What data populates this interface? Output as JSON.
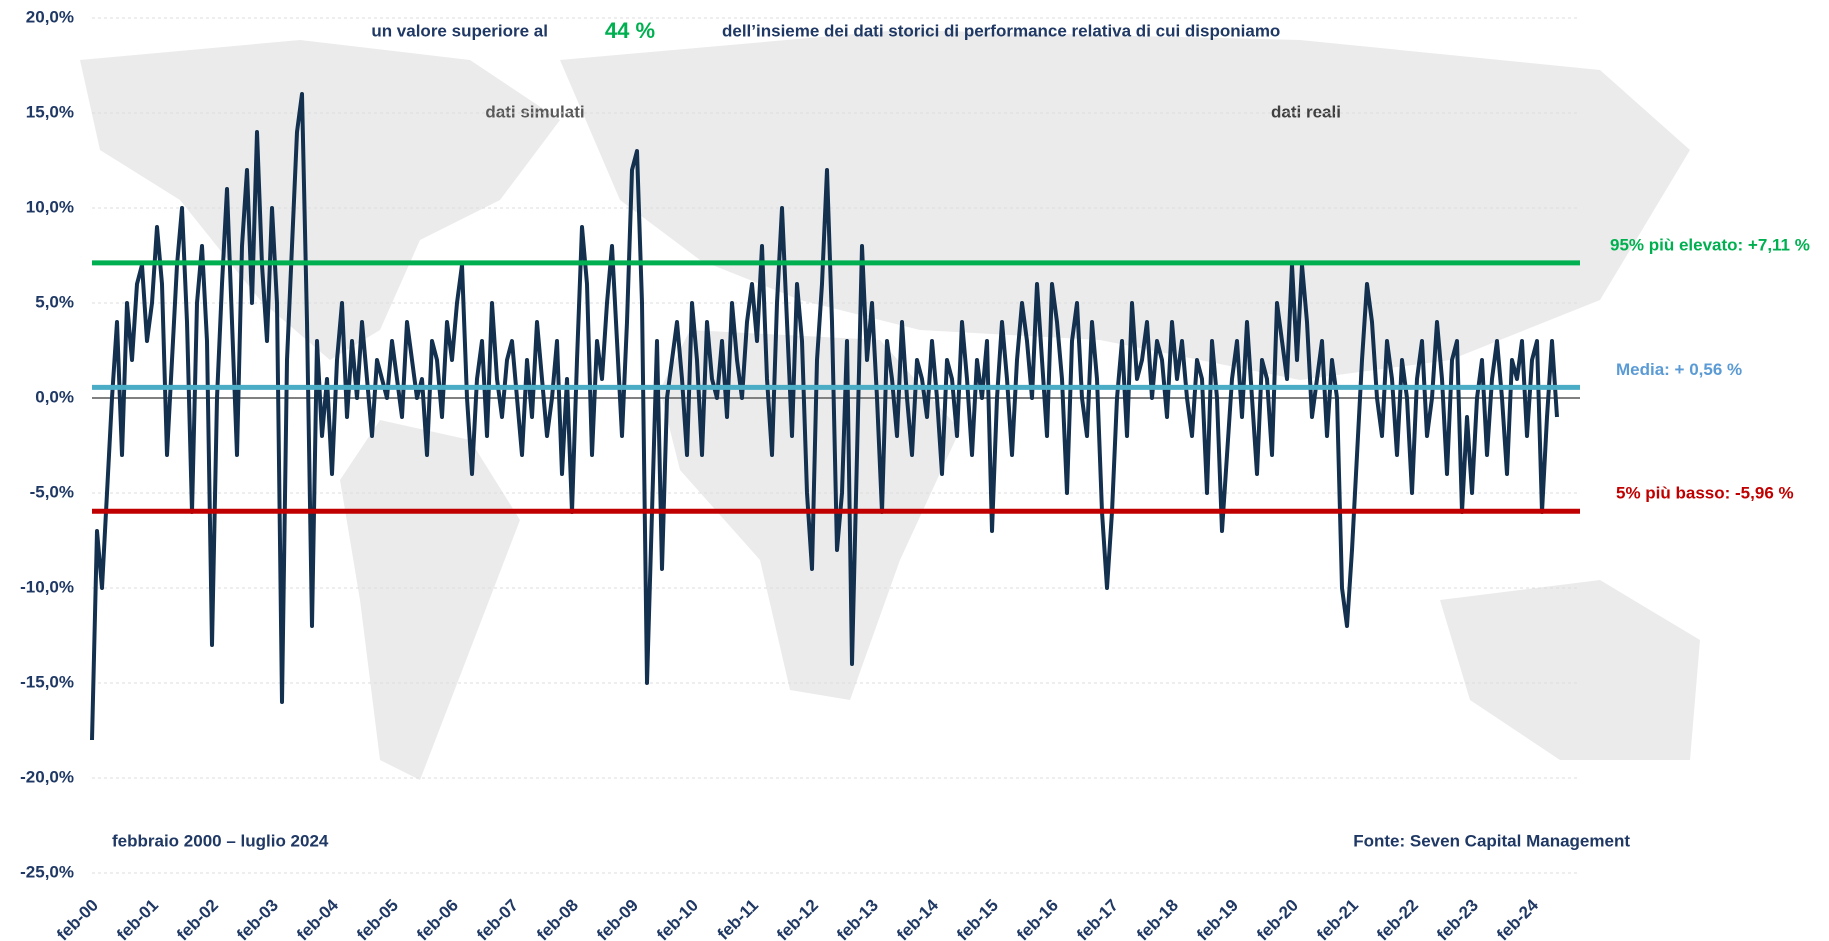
{
  "chart_data": {
    "type": "line",
    "title_prefix": "un valore superiore al",
    "highlight": "44 %",
    "title_suffix": "dell’insieme dei dati storici di performance relativa di cui disponiamo",
    "annotations": [
      "dati simulati",
      "dati reali",
      "febbraio 2000 – luglio 2024",
      "Fonte: Seven Capital Management"
    ],
    "categories": [
      "feb-00",
      null,
      null,
      null,
      null,
      null,
      null,
      null,
      null,
      null,
      null,
      null,
      "feb-01",
      null,
      null,
      null,
      null,
      null,
      null,
      null,
      null,
      null,
      null,
      null,
      "feb-02",
      null,
      null,
      null,
      null,
      null,
      null,
      null,
      null,
      null,
      null,
      null,
      "feb-03",
      null,
      null,
      null,
      null,
      null,
      null,
      null,
      null,
      null,
      null,
      null,
      "feb-04",
      null,
      null,
      null,
      null,
      null,
      null,
      null,
      null,
      null,
      null,
      null,
      "feb-05",
      null,
      null,
      null,
      null,
      null,
      null,
      null,
      null,
      null,
      null,
      null,
      "feb-06",
      null,
      null,
      null,
      null,
      null,
      null,
      null,
      null,
      null,
      null,
      null,
      "feb-07",
      null,
      null,
      null,
      null,
      null,
      null,
      null,
      null,
      null,
      null,
      null,
      "feb-08",
      null,
      null,
      null,
      null,
      null,
      null,
      null,
      null,
      null,
      null,
      null,
      "feb-09",
      null,
      null,
      null,
      null,
      null,
      null,
      null,
      null,
      null,
      null,
      null,
      "feb-10",
      null,
      null,
      null,
      null,
      null,
      null,
      null,
      null,
      null,
      null,
      null,
      "feb-11",
      null,
      null,
      null,
      null,
      null,
      null,
      null,
      null,
      null,
      null,
      null,
      "feb-12",
      null,
      null,
      null,
      null,
      null,
      null,
      null,
      null,
      null,
      null,
      null,
      "feb-13",
      null,
      null,
      null,
      null,
      null,
      null,
      null,
      null,
      null,
      null,
      null,
      "feb-14",
      null,
      null,
      null,
      null,
      null,
      null,
      null,
      null,
      null,
      null,
      null,
      "feb-15",
      null,
      null,
      null,
      null,
      null,
      null,
      null,
      null,
      null,
      null,
      null,
      "feb-16",
      null,
      null,
      null,
      null,
      null,
      null,
      null,
      null,
      null,
      null,
      null,
      "feb-17",
      null,
      null,
      null,
      null,
      null,
      null,
      null,
      null,
      null,
      null,
      null,
      "feb-18",
      null,
      null,
      null,
      null,
      null,
      null,
      null,
      null,
      null,
      null,
      null,
      "feb-19",
      null,
      null,
      null,
      null,
      null,
      null,
      null,
      null,
      null,
      null,
      null,
      "feb-20",
      null,
      null,
      null,
      null,
      null,
      null,
      null,
      null,
      null,
      null,
      null,
      "feb-21",
      null,
      null,
      null,
      null,
      null,
      null,
      null,
      null,
      null,
      null,
      null,
      "feb-22",
      null,
      null,
      null,
      null,
      null,
      null,
      null,
      null,
      null,
      null,
      null,
      "feb-23",
      null,
      null,
      null,
      null,
      null,
      null,
      null,
      null,
      null,
      null,
      null,
      "feb-24",
      null,
      null,
      null,
      null,
      null
    ],
    "values": [
      -18,
      -7,
      -10,
      -5,
      0,
      4,
      -3,
      5,
      2,
      6,
      7,
      3,
      5,
      9,
      6,
      -3,
      2,
      7,
      10,
      4,
      -6,
      5,
      8,
      3,
      -13,
      0,
      6,
      11,
      4,
      -3,
      8,
      12,
      5,
      14,
      7,
      3,
      10,
      5,
      -16,
      2,
      8,
      14,
      16,
      4,
      -12,
      3,
      -2,
      1,
      -4,
      2,
      5,
      -1,
      3,
      0,
      4,
      1,
      -2,
      2,
      1,
      0,
      3,
      1,
      -1,
      4,
      2,
      0,
      1,
      -3,
      3,
      2,
      -1,
      4,
      2,
      5,
      7,
      0,
      -4,
      1,
      3,
      -2,
      5,
      1,
      -1,
      2,
      3,
      0,
      -3,
      2,
      -1,
      4,
      1,
      -2,
      0,
      3,
      -4,
      1,
      -6,
      2,
      9,
      6,
      -3,
      3,
      1,
      5,
      8,
      3,
      -2,
      4,
      12,
      13,
      5,
      -15,
      -6,
      3,
      -9,
      0,
      2,
      4,
      1,
      -3,
      5,
      2,
      -3,
      4,
      1,
      0,
      3,
      -1,
      5,
      2,
      0,
      4,
      6,
      3,
      8,
      1,
      -3,
      5,
      10,
      4,
      -2,
      6,
      3,
      -5,
      -9,
      2,
      6,
      12,
      4,
      -8,
      -5,
      3,
      -14,
      -3,
      8,
      2,
      5,
      0,
      -6,
      3,
      1,
      -2,
      4,
      0,
      -3,
      2,
      1,
      -1,
      3,
      0,
      -4,
      2,
      1,
      -2,
      4,
      1,
      -3,
      2,
      0,
      3,
      -7,
      0,
      4,
      1,
      -3,
      2,
      5,
      3,
      0,
      6,
      2,
      -2,
      6,
      4,
      1,
      -5,
      3,
      5,
      0,
      -2,
      4,
      1,
      -6,
      -10,
      -6,
      0,
      3,
      -2,
      5,
      1,
      2,
      4,
      0,
      3,
      2,
      -1,
      4,
      1,
      3,
      0,
      -2,
      2,
      1,
      -5,
      3,
      0,
      -7,
      -3,
      1,
      3,
      -1,
      4,
      0,
      -4,
      2,
      1,
      -3,
      5,
      3,
      1,
      7,
      2,
      7,
      4,
      -1,
      1,
      3,
      -2,
      2,
      0,
      -10,
      -12,
      -8,
      -3,
      2,
      6,
      4,
      0,
      -2,
      3,
      1,
      -3,
      2,
      0,
      -5,
      1,
      3,
      -2,
      0,
      4,
      1,
      -4,
      2,
      3,
      -6,
      -1,
      -5,
      0,
      2,
      -3,
      1,
      3,
      0,
      -4,
      2,
      1,
      3,
      -2,
      2,
      3,
      -6,
      -1,
      3,
      -1
    ],
    "color": "#13304f",
    "reference_lines": [
      {
        "value": 7.11,
        "label": "95% più elevato: +7,11 %",
        "color": "#00b050"
      },
      {
        "value": 0.56,
        "label": "Media: + 0,56 %",
        "color": "#4bacc6"
      },
      {
        "value": -5.96,
        "label": "5% più basso: -5,96 %",
        "color": "#c00000"
      }
    ],
    "ylim": [
      -25,
      20
    ],
    "yticks": [
      {
        "value": -25,
        "label": "-25,0%"
      },
      {
        "value": -20,
        "label": "-20,0%"
      },
      {
        "value": -15,
        "label": "-15,0%"
      },
      {
        "value": -10,
        "label": "-10,0%"
      },
      {
        "value": -5,
        "label": "-5,0%"
      },
      {
        "value": 0,
        "label": "0,0%"
      },
      {
        "value": 5,
        "label": "5,0%"
      },
      {
        "value": 10,
        "label": "10,0%"
      },
      {
        "value": 15,
        "label": "15,0%"
      },
      {
        "value": 20,
        "label": "20,0%"
      }
    ],
    "grid": true
  }
}
